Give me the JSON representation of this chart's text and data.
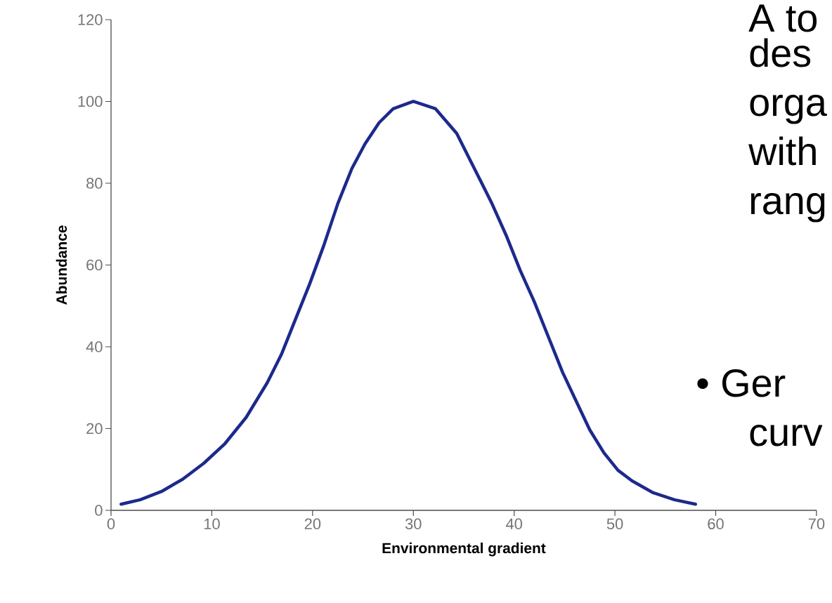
{
  "chart_data": {
    "type": "line",
    "xlabel": "Environmental gradient",
    "ylabel": "Abundance",
    "x": [
      1,
      2.9,
      5,
      7.1,
      9.2,
      11.3,
      13.4,
      15.5,
      16.9,
      18.3,
      19.7,
      21.1,
      22.5,
      23.9,
      25.2,
      26.6,
      28,
      30,
      32.2,
      34.3,
      36.4,
      37.8,
      39.2,
      40.6,
      42,
      43.4,
      44.8,
      46.1,
      47.5,
      48.9,
      50.3,
      51.7,
      53.8,
      55.9,
      58
    ],
    "values": [
      1.5,
      2.6,
      4.6,
      7.6,
      11.5,
      16.3,
      22.7,
      31.2,
      38.1,
      46.7,
      55.3,
      64.7,
      75,
      83.6,
      89.6,
      94.8,
      98.2,
      100,
      98.2,
      92.2,
      81.9,
      75,
      67.3,
      58.7,
      51,
      42.4,
      33.8,
      27,
      19.7,
      14.1,
      9.8,
      7.2,
      4.3,
      2.6,
      1.5
    ],
    "color": "#1c2a8c",
    "marker": "none",
    "xlim": [
      0,
      70
    ],
    "xticks": [
      0,
      10,
      20,
      30,
      40,
      50,
      60,
      70
    ],
    "ylim": [
      0,
      120
    ],
    "yticks": [
      0,
      20,
      40,
      60,
      80,
      100,
      120
    ],
    "annotations": [
      "A to",
      "des",
      "orga",
      "with",
      "rang",
      "• Ger",
      "curv"
    ]
  }
}
